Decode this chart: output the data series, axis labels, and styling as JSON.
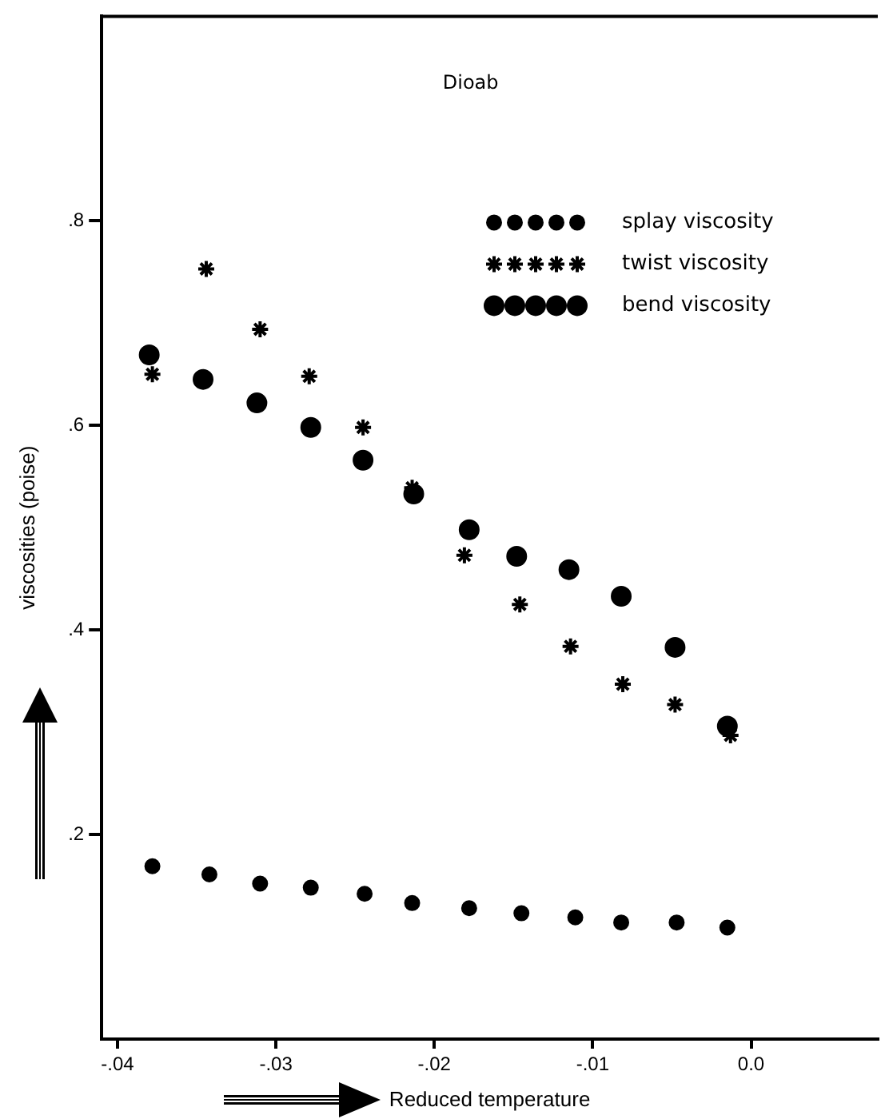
{
  "chart_data": {
    "type": "scatter",
    "annotations": [
      "Dioab"
    ],
    "xlabel": "Reduced temperature",
    "ylabel": "viscosities (poise)",
    "xlim": [
      -0.041,
      0.008
    ],
    "xticks": [
      {
        "value": -0.04,
        "label": "-.04"
      },
      {
        "value": -0.03,
        "label": "-.03"
      },
      {
        "value": -0.02,
        "label": "-.02"
      },
      {
        "value": -0.01,
        "label": "-.01"
      },
      {
        "value": 0,
        "label": "0.0"
      }
    ],
    "ylim": [
      0,
      1.0
    ],
    "yticks": [
      {
        "value": 0.2,
        "label": ".2"
      },
      {
        "value": 0.4,
        "label": ".4"
      },
      {
        "value": 0.6,
        "label": ".6"
      },
      {
        "value": 0.8,
        "label": ".8"
      }
    ],
    "grid": false,
    "legend": "top right",
    "series": [
      {
        "name": "splay viscosity",
        "color": "#000000",
        "marker": "circle",
        "x": [
          -0.0378,
          -0.0342,
          -0.031,
          -0.0278,
          -0.0244,
          -0.0214,
          -0.0178,
          -0.0145,
          -0.0111,
          -0.0082,
          -0.0047,
          -0.0015
        ],
        "values": [
          0.169,
          0.161,
          0.152,
          0.148,
          0.142,
          0.133,
          0.128,
          0.123,
          0.119,
          0.114,
          0.114,
          0.109
        ]
      },
      {
        "name": "twist viscosity",
        "color": "#000000",
        "marker": "cross",
        "x": [
          -0.0378,
          -0.0344,
          -0.031,
          -0.0279,
          -0.0245,
          -0.0214,
          -0.0181,
          -0.0146,
          -0.0114,
          -0.0081,
          -0.0048,
          -0.0013
        ],
        "values": [
          0.65,
          0.753,
          0.694,
          0.648,
          0.598,
          0.539,
          0.473,
          0.425,
          0.384,
          0.347,
          0.327,
          0.297
        ]
      },
      {
        "name": "bend viscosity",
        "color": "#000000",
        "marker": "circle",
        "x": [
          -0.038,
          -0.0346,
          -0.0312,
          -0.0278,
          -0.0245,
          -0.0213,
          -0.0178,
          -0.0148,
          -0.0115,
          -0.0082,
          -0.0048,
          -0.0015
        ],
        "values": [
          0.669,
          0.645,
          0.622,
          0.598,
          0.566,
          0.533,
          0.498,
          0.472,
          0.459,
          0.433,
          0.383,
          0.306
        ]
      }
    ]
  }
}
